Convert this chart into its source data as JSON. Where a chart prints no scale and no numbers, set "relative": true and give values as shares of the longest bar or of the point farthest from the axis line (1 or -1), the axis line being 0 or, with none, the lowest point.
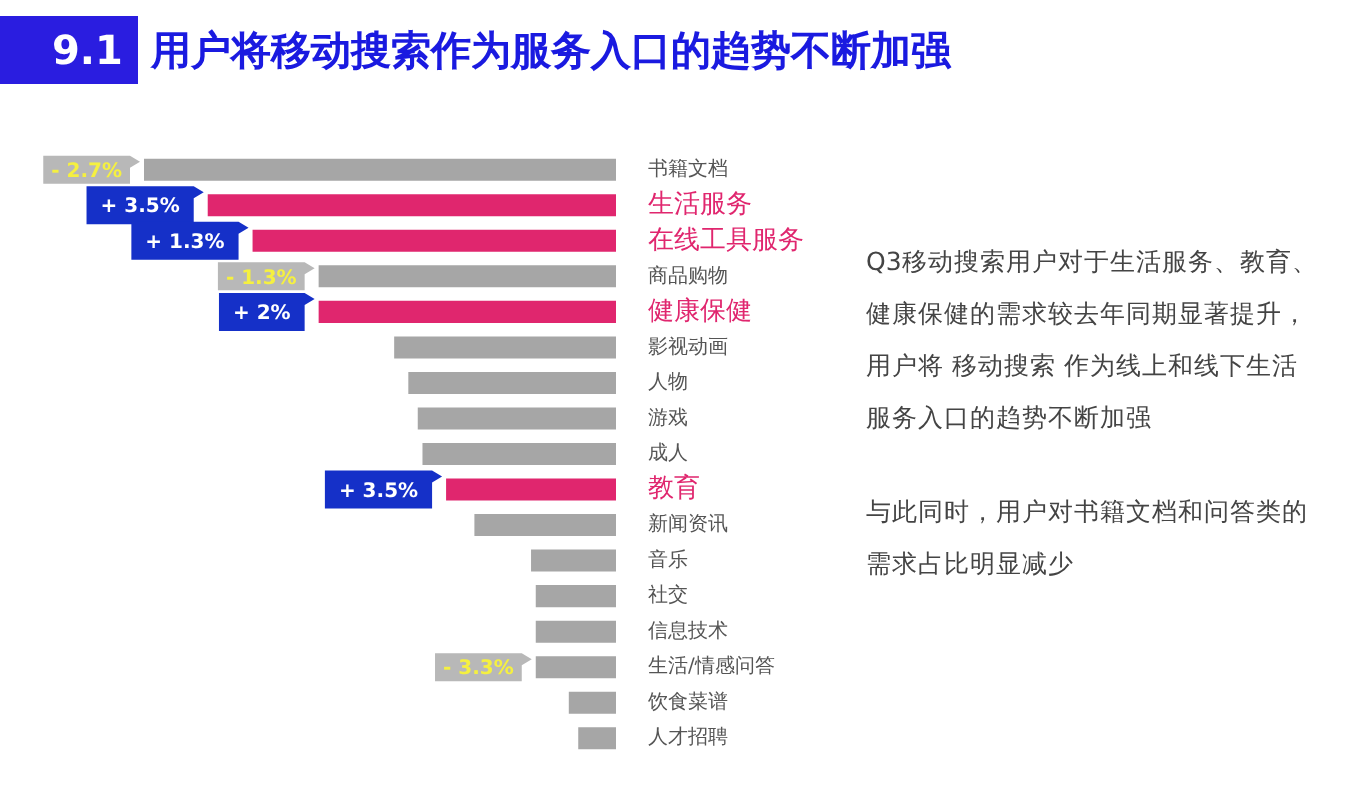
{
  "chart_data": {
    "type": "bar",
    "orientation": "horizontal",
    "relative": true,
    "title": "用户将移动搜索作为服务入口的趋势不断加强",
    "annotations": [
      "9.1",
      "Q3移动搜索用户对于生活服务、教育、健康保健的需求较去年同期显著提升，用户将 移动搜索 作为线上和线下生活服务入口的趋势不断加强",
      "与此同时，用户对书籍文档和问答类的需求占比明显减少",
      {
        "text": "- 2.7%",
        "x": 1,
        "y": "书籍文档"
      },
      {
        "text": "+ 3.5%",
        "x": 0.865,
        "y": "生活服务"
      },
      {
        "text": "+ 1.3%",
        "x": 0.77,
        "y": "在线工具服务"
      },
      {
        "text": "- 1.3%",
        "x": 0.63,
        "y": "商品购物"
      },
      {
        "text": "+ 2%",
        "x": 0.63,
        "y": "健康保健"
      },
      {
        "text": "+ 3.5%",
        "x": 0.36,
        "y": "教育"
      },
      {
        "text": "- 3.3%",
        "x": 0.17,
        "y": "生活/情感问答"
      }
    ],
    "categories": [
      "书籍文档",
      "生活服务",
      "在线工具服务",
      "商品购物",
      "健康保健",
      "影视动画",
      "人物",
      "游戏",
      "成人",
      "教育",
      "新闻资讯",
      "音乐",
      "社交",
      "信息技术",
      "生活/情感问答",
      "饮食菜谱",
      "人才招聘"
    ],
    "values": [
      1,
      0.865,
      0.77,
      0.63,
      0.63,
      0.47,
      0.44,
      0.42,
      0.41,
      0.36,
      0.3,
      0.18,
      0.17,
      0.17,
      0.17,
      0.1,
      0.08
    ],
    "colors": [
      "#a6a6a6",
      "#e0266e",
      "#e0266e",
      "#a6a6a6",
      "#e0266e",
      "#a6a6a6",
      "#a6a6a6",
      "#a6a6a6",
      "#a6a6a6",
      "#e0266e",
      "#a6a6a6",
      "#a6a6a6",
      "#a6a6a6",
      "#a6a6a6",
      "#a6a6a6",
      "#a6a6a6",
      "#a6a6a6"
    ],
    "legend": false
  }
}
